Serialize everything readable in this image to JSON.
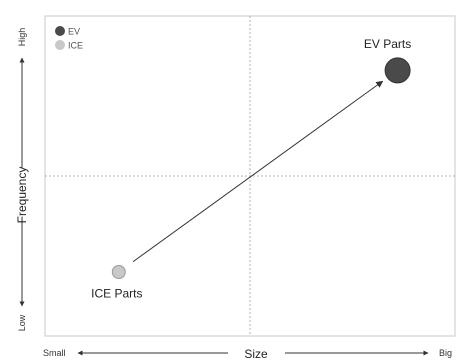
{
  "chart_data": {
    "type": "scatter",
    "title": "",
    "xlabel": "Size",
    "ylabel": "Frequency",
    "x_axis_min_label": "Small",
    "x_axis_max_label": "Big",
    "y_axis_min_label": "Low",
    "y_axis_max_label": "High",
    "xlim": [
      0,
      1
    ],
    "ylim": [
      0,
      1
    ],
    "quadrant_dividers": {
      "x": 0.5,
      "y": 0.5
    },
    "grid": false,
    "legend_position": "top-left",
    "series": [
      {
        "name": "EV",
        "color": "#4a4a4a"
      },
      {
        "name": "ICE",
        "color": "#c8c8c8"
      }
    ],
    "points": [
      {
        "label": "ICE Parts",
        "series": "ICE",
        "x": 0.18,
        "y": 0.2,
        "size": "small"
      },
      {
        "label": "EV Parts",
        "series": "EV",
        "x": 0.86,
        "y": 0.83,
        "size": "large"
      }
    ],
    "arrow": {
      "from": "ICE Parts",
      "to": "EV Parts"
    }
  }
}
